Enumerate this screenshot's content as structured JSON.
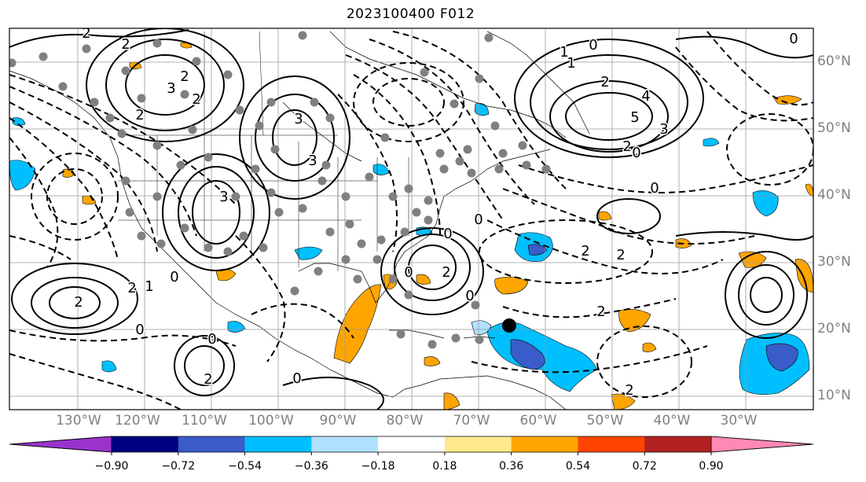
{
  "title": "2023100400 F012",
  "map": {
    "longitude_labels": [
      "130°W",
      "120°W",
      "110°W",
      "100°W",
      "90°W",
      "80°W",
      "70°W",
      "60°W",
      "50°W",
      "40°W",
      "30°W"
    ],
    "latitude_labels": [
      "60°N",
      "50°N",
      "40°N",
      "30°N",
      "20°N",
      "10°N"
    ],
    "gridline_color": "#9a9a9a",
    "label_color": "#808080",
    "contour_labels": [
      "2",
      "2",
      "2",
      "3",
      "2",
      "3",
      "3",
      "3",
      "1",
      "0",
      "2",
      "1",
      "2",
      "4",
      "5",
      "3",
      "2",
      "0",
      "0",
      "0",
      "0",
      "2",
      "2",
      "0",
      "2",
      "0",
      "0",
      "2",
      "2",
      "0",
      "1",
      "2",
      "0",
      "2",
      "0",
      "2",
      "0"
    ],
    "marker": "black filled circle"
  },
  "colorbar": {
    "tick_labels": [
      "−0.90",
      "−0.72",
      "−0.54",
      "−0.36",
      "−0.18",
      "0.18",
      "0.36",
      "0.54",
      "0.72",
      "0.90"
    ],
    "colors": [
      "#9933cc",
      "#000080",
      "#3a5cc8",
      "#00bfff",
      "#b0e2ff",
      "#ffffff",
      "#ffe98a",
      "#ffa500",
      "#ff4500",
      "#b22222",
      "#ff88b4"
    ]
  }
}
